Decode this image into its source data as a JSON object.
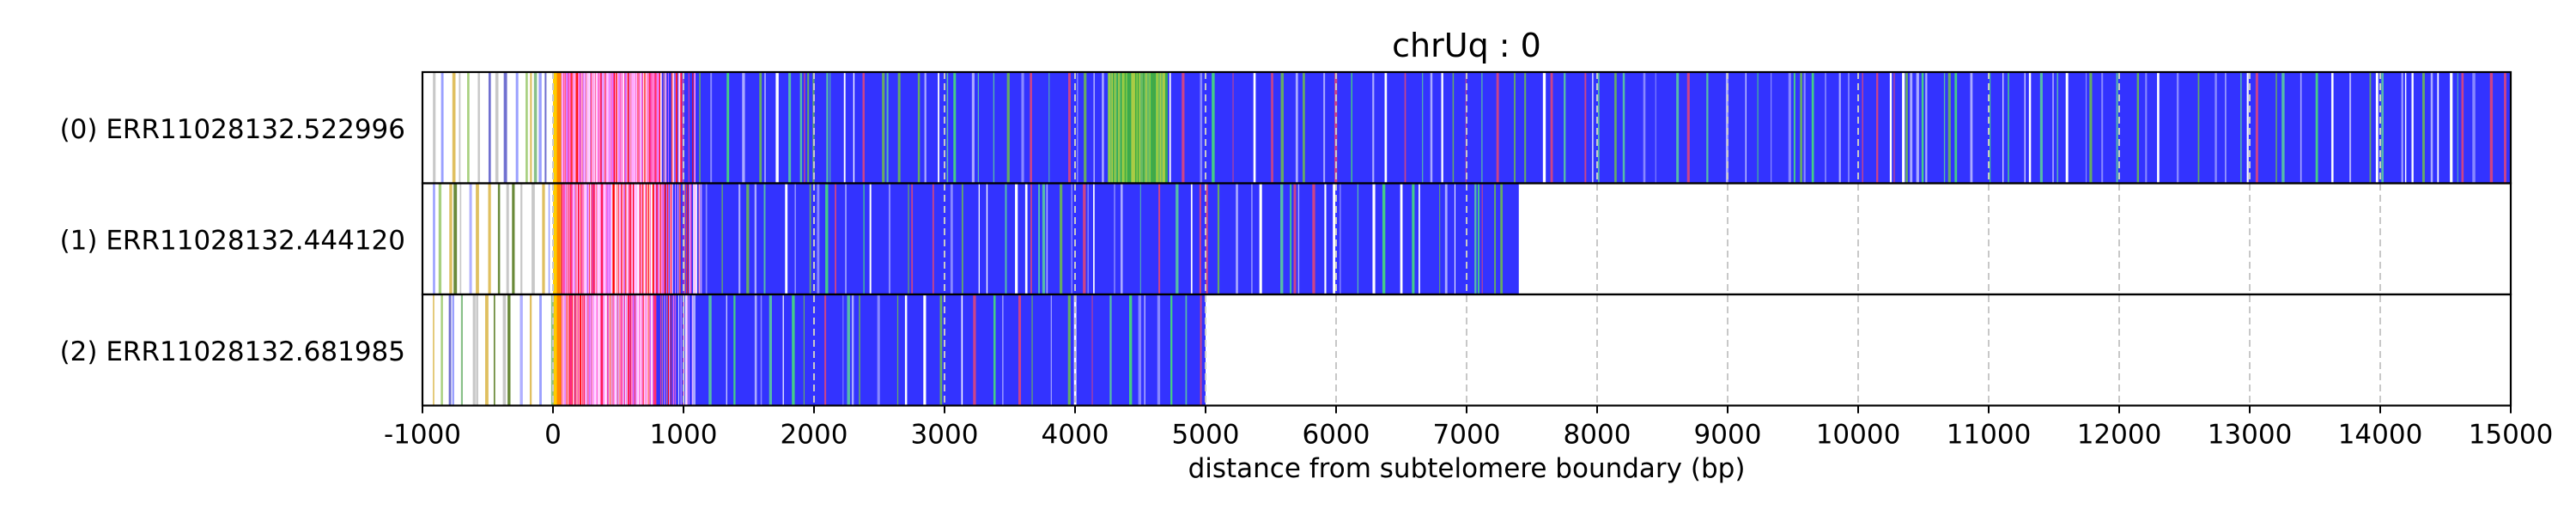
{
  "chart_data": {
    "type": "read-tracks",
    "title": "chrUq : 0",
    "xlabel": "distance from subtelomere boundary (bp)",
    "xlim": [
      -1000,
      15000
    ],
    "xticks": [
      -1000,
      0,
      1000,
      2000,
      3000,
      4000,
      5000,
      6000,
      7000,
      8000,
      9000,
      10000,
      11000,
      12000,
      13000,
      14000,
      15000
    ],
    "grid": "vertical dashed gray",
    "track_fill_color": "#3333ff",
    "tracks": [
      {
        "label": "(0) ERR11028132.522996",
        "start": -1000,
        "end": 15000,
        "dense_start": 0,
        "dense_end": 1100,
        "green_cluster": [
          4250,
          4700
        ]
      },
      {
        "label": "(1) ERR11028132.444120",
        "start": -1000,
        "end": 7400,
        "dense_start": 0,
        "dense_end": 1150
      },
      {
        "label": "(2) ERR11028132.681985",
        "start": -1000,
        "end": 5000,
        "dense_start": 0,
        "dense_end": 1050
      }
    ]
  }
}
